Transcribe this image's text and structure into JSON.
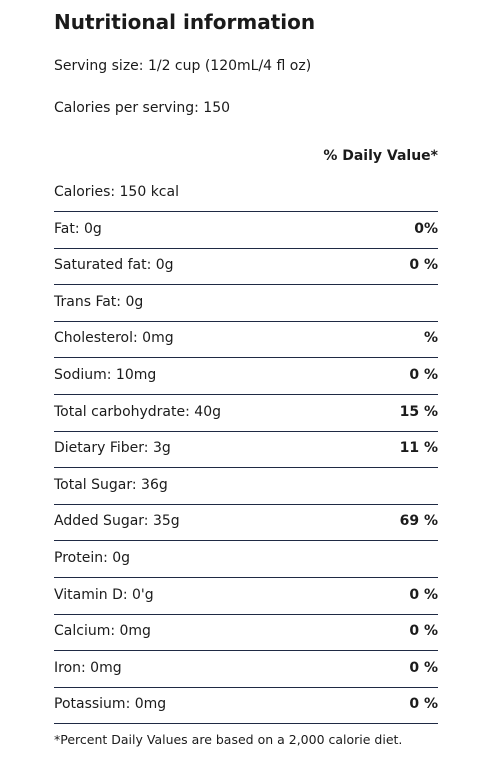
{
  "header": {
    "title": "Nutritional information",
    "serving_size": "Serving size: 1/2 cup (120mL/4 fl oz)",
    "calories_per_serving": "Calories per serving: 150"
  },
  "table": {
    "header": "% Daily Value*",
    "rows": [
      [
        "Calories: 150 kcal",
        ""
      ],
      [
        "Fat: 0g",
        "0%"
      ],
      [
        "Saturated fat: 0g",
        "0 %"
      ],
      [
        "Trans Fat: 0g",
        ""
      ],
      [
        "Cholesterol: 0mg",
        "%"
      ],
      [
        "Sodium: 10mg",
        "0 %"
      ],
      [
        "Total carbohydrate: 40g",
        "15 %"
      ],
      [
        "Dietary Fiber: 3g",
        "11 %"
      ],
      [
        "Total Sugar: 36g",
        ""
      ],
      [
        "Added Sugar: 35g",
        "69 %"
      ],
      [
        "Protein: 0g",
        ""
      ],
      [
        "Vitamin D: 0'g",
        "0 %"
      ],
      [
        "Calcium: 0mg",
        "0 %"
      ],
      [
        "Iron: 0mg",
        "0 %"
      ],
      [
        "Potassium: 0mg",
        "0 %"
      ]
    ]
  },
  "footnote": "*Percent Daily Values are based on a 2,000 calorie diet."
}
